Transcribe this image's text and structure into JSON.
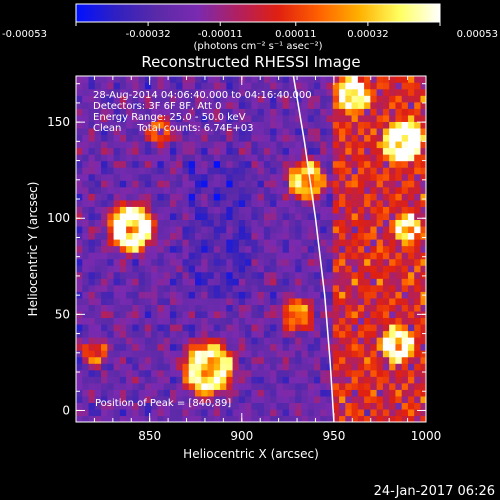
{
  "colorbar": {
    "tick_labels": [
      "-0.00053",
      "-0.00032",
      "-0.00011",
      "0.00011",
      "0.00032",
      "0.00053"
    ],
    "ticks": [
      -0.00053,
      -0.00032,
      -0.00011,
      0.00011,
      0.00032,
      0.00053
    ],
    "range": [
      -0.00053,
      0.00053
    ],
    "units_label": "(photons cm⁻² s⁻¹ asec⁻²)",
    "stops": [
      "#0010ff",
      "#3020c0",
      "#5a2aa8",
      "#7a2ab0",
      "#b02060",
      "#e02010",
      "#ff6000",
      "#ffb000",
      "#ffff60",
      "#ffffff"
    ]
  },
  "chart_data": {
    "type": "heatmap",
    "title": "Reconstructed RHESSI Image",
    "xlabel": "Heliocentric X (arcsec)",
    "ylabel": "Heliocentric Y (arcsec)",
    "xlim": [
      810,
      1000
    ],
    "ylim": [
      -6,
      174
    ],
    "xticks": [
      850,
      900,
      950,
      1000
    ],
    "yticks": [
      0,
      50,
      100,
      150
    ],
    "annotations": [
      "28-Aug-2014 04:06:40.000 to 04:16:40.000",
      "Detectors: 3F 6F 8F, Att 0",
      "Energy Range: 25.0 - 50.0 keV",
      "Clean     Total counts: 6.74E+03"
    ],
    "peak_label": "Position of Peak = [840,89]",
    "peak": [
      840,
      89
    ],
    "limb_curve": {
      "x": [
        928,
        934,
        940,
        945,
        948,
        950
      ],
      "y": [
        174,
        140,
        100,
        60,
        25,
        -6
      ]
    },
    "hot_spots": [
      {
        "x": 840,
        "y": 95,
        "amp": 1.0,
        "radius": 14
      },
      {
        "x": 882,
        "y": 22,
        "amp": 0.85,
        "radius": 16
      },
      {
        "x": 988,
        "y": 140,
        "amp": 0.8,
        "radius": 12
      },
      {
        "x": 935,
        "y": 120,
        "amp": 0.7,
        "radius": 12
      },
      {
        "x": 960,
        "y": 165,
        "amp": 0.7,
        "radius": 10
      },
      {
        "x": 985,
        "y": 35,
        "amp": 0.65,
        "radius": 10
      },
      {
        "x": 930,
        "y": 50,
        "amp": 0.6,
        "radius": 10
      },
      {
        "x": 990,
        "y": 95,
        "amp": 0.55,
        "radius": 8
      },
      {
        "x": 855,
        "y": 145,
        "amp": 0.45,
        "radius": 8
      },
      {
        "x": 820,
        "y": 30,
        "amp": 0.45,
        "radius": 8
      }
    ],
    "grid": false
  },
  "timestamp": "24-Jan-2017 06:26"
}
